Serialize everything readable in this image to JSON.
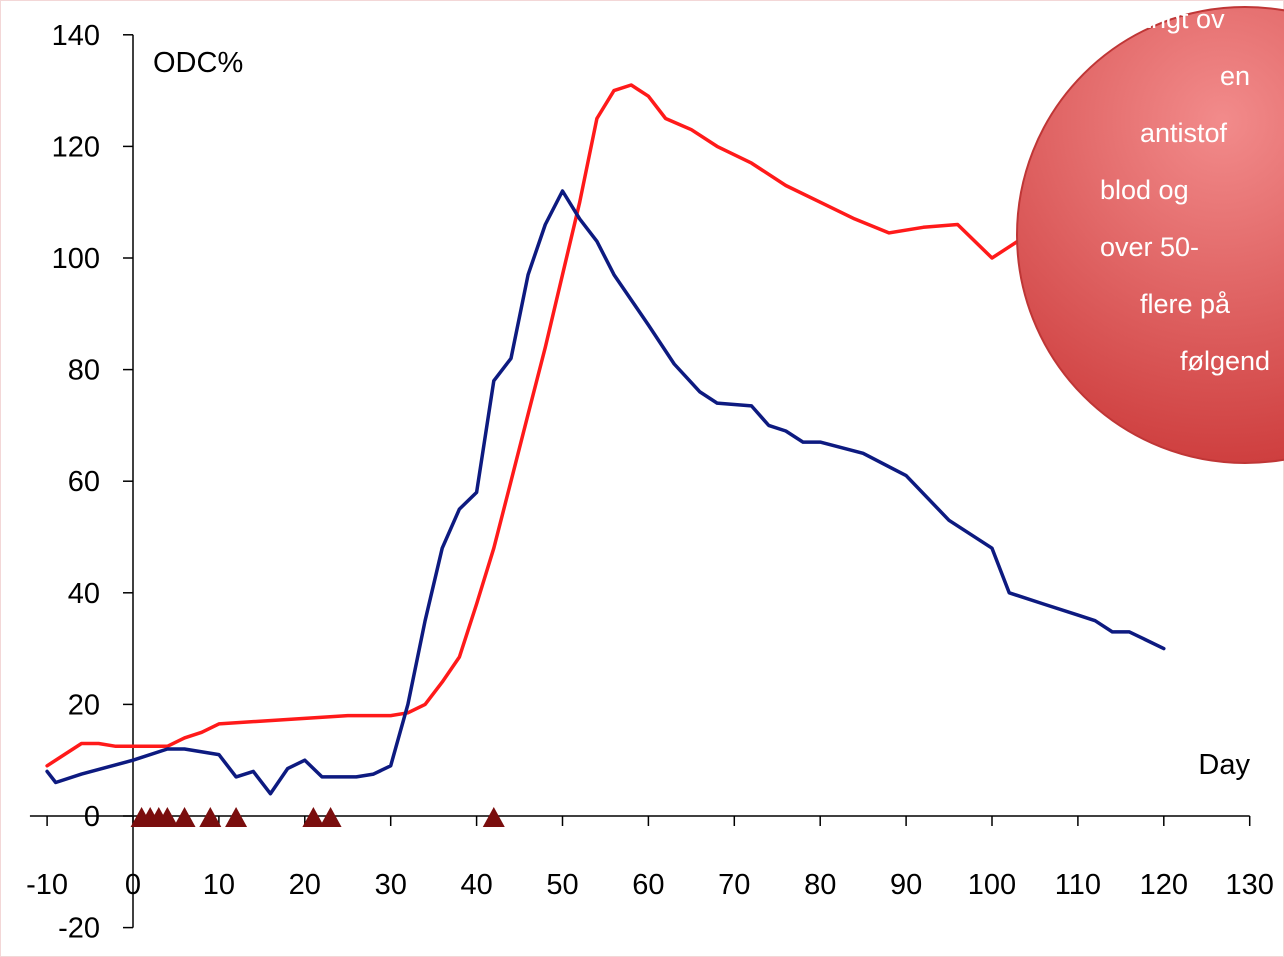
{
  "chart_data": {
    "type": "line",
    "xlabel": "Day",
    "ylabel": "ODC%",
    "xlim": [
      -10,
      130
    ],
    "ylim": [
      -20,
      140
    ],
    "x_ticks": [
      -10,
      0,
      10,
      20,
      30,
      40,
      50,
      60,
      70,
      80,
      90,
      100,
      110,
      120,
      130
    ],
    "y_ticks": [
      -20,
      0,
      20,
      40,
      60,
      80,
      100,
      120,
      140
    ],
    "grid": false,
    "series": [
      {
        "color": "#ff1a1a",
        "points": [
          [
            -10,
            9
          ],
          [
            -8,
            11
          ],
          [
            -6,
            13
          ],
          [
            -4,
            13
          ],
          [
            -2,
            12.5
          ],
          [
            0,
            12.5
          ],
          [
            2,
            12.5
          ],
          [
            4,
            12.5
          ],
          [
            6,
            14
          ],
          [
            8,
            15
          ],
          [
            10,
            16.5
          ],
          [
            15,
            17
          ],
          [
            20,
            17.5
          ],
          [
            25,
            18
          ],
          [
            30,
            18
          ],
          [
            32,
            18.5
          ],
          [
            34,
            20
          ],
          [
            36,
            24
          ],
          [
            38,
            28.5
          ],
          [
            40,
            38
          ],
          [
            42,
            48
          ],
          [
            44,
            60
          ],
          [
            46,
            72
          ],
          [
            48,
            84
          ],
          [
            50,
            97
          ],
          [
            52,
            110
          ],
          [
            54,
            125
          ],
          [
            56,
            130
          ],
          [
            58,
            131
          ],
          [
            60,
            129
          ],
          [
            62,
            125
          ],
          [
            65,
            123
          ],
          [
            68,
            120
          ],
          [
            72,
            117
          ],
          [
            76,
            113
          ],
          [
            80,
            110
          ],
          [
            84,
            107
          ],
          [
            88,
            104.5
          ],
          [
            92,
            105.5
          ],
          [
            96,
            106
          ],
          [
            98,
            103
          ],
          [
            100,
            100
          ],
          [
            102,
            102
          ],
          [
            104,
            104
          ],
          [
            105,
            105
          ]
        ]
      },
      {
        "color": "#0d1a80",
        "points": [
          [
            -10,
            8
          ],
          [
            -9,
            6
          ],
          [
            -6,
            7.5
          ],
          [
            0,
            10
          ],
          [
            4,
            12
          ],
          [
            6,
            12
          ],
          [
            10,
            11
          ],
          [
            12,
            7
          ],
          [
            14,
            8
          ],
          [
            16,
            4
          ],
          [
            18,
            8.5
          ],
          [
            20,
            10
          ],
          [
            22,
            7
          ],
          [
            26,
            7
          ],
          [
            28,
            7.5
          ],
          [
            30,
            9
          ],
          [
            32,
            20
          ],
          [
            34,
            35
          ],
          [
            36,
            48
          ],
          [
            38,
            55
          ],
          [
            40,
            58
          ],
          [
            42,
            78
          ],
          [
            44,
            82
          ],
          [
            46,
            97
          ],
          [
            48,
            106
          ],
          [
            50,
            112
          ],
          [
            52,
            107
          ],
          [
            54,
            103
          ],
          [
            56,
            97
          ],
          [
            60,
            88
          ],
          [
            63,
            81
          ],
          [
            66,
            76
          ],
          [
            68,
            74
          ],
          [
            72,
            73.5
          ],
          [
            74,
            70
          ],
          [
            76,
            69
          ],
          [
            78,
            67
          ],
          [
            80,
            67
          ],
          [
            85,
            65
          ],
          [
            90,
            61
          ],
          [
            95,
            53
          ],
          [
            100,
            48
          ],
          [
            102,
            40
          ],
          [
            106,
            38
          ],
          [
            110,
            36
          ],
          [
            112,
            35
          ],
          [
            114,
            33
          ],
          [
            116,
            33
          ],
          [
            120,
            30
          ]
        ]
      }
    ],
    "markers": {
      "shape": "triangle",
      "color": "#7a0e0e",
      "x": [
        1,
        2,
        3,
        4,
        6,
        9,
        12,
        21,
        23,
        42
      ],
      "y": 0
    }
  },
  "bubble": {
    "lines": [
      "langt ov",
      "en",
      "antistof",
      "blod og",
      "over 50-",
      "flere på",
      "følgend"
    ],
    "fill": "#dd5b5b"
  }
}
